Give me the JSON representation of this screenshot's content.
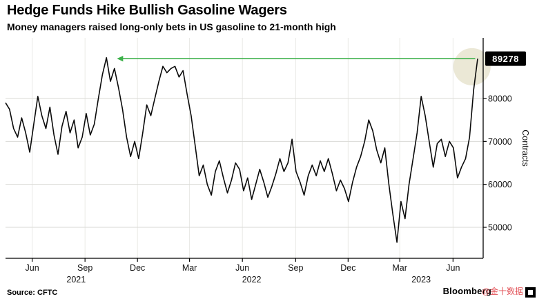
{
  "header": {
    "title": "Hedge Funds Hike Bullish Gasoline Wagers",
    "subtitle": "Money managers raised long-only bets in US gasoline to 21-month high"
  },
  "footer": {
    "source": "Source: CFTC",
    "brand": "Bloomberg",
    "watermark": "@金十数据"
  },
  "chart_data": {
    "type": "line",
    "y_title": "Contracts",
    "badge_label": "89278",
    "line_color": "#0a0a0a",
    "y_ticks": [
      50000,
      60000,
      70000,
      80000
    ],
    "ylim": [
      42800,
      94000
    ],
    "x_ticks": [
      {
        "label": "Jun",
        "week": 6.6
      },
      {
        "label": "Sep",
        "week": 19.7
      },
      {
        "label": "Dec",
        "week": 32.7
      },
      {
        "label": "Mar",
        "week": 45.6
      },
      {
        "label": "Jun",
        "week": 58.7
      },
      {
        "label": "Sep",
        "week": 71.9
      },
      {
        "label": "Dec",
        "week": 84.9
      },
      {
        "label": "Mar",
        "week": 97.7
      },
      {
        "label": "Jun",
        "week": 110.9
      }
    ],
    "year_labels": [
      {
        "label": "2021",
        "week": 17.5
      },
      {
        "label": "2022",
        "week": 61.0
      },
      {
        "label": "2023",
        "week": 103.0
      }
    ],
    "arrow": {
      "value": 89278,
      "from_week": 116.4,
      "to_week": 27.6,
      "color": "#3cb14a"
    },
    "highlight": {
      "week": 115.6,
      "value": 87400,
      "radius": 27,
      "fill": "#d8d2ae",
      "opacity": 0.5
    },
    "values": [
      79000,
      77500,
      73000,
      71000,
      75500,
      72000,
      67500,
      74000,
      80500,
      76000,
      73000,
      78000,
      71500,
      67000,
      73500,
      77000,
      72000,
      75000,
      68500,
      71000,
      76500,
      71500,
      74000,
      80000,
      85500,
      89500,
      84000,
      87000,
      82500,
      77500,
      71000,
      66500,
      70000,
      66000,
      72000,
      78500,
      76000,
      80000,
      84000,
      87500,
      86000,
      87000,
      87500,
      85000,
      86500,
      81000,
      76000,
      69000,
      62000,
      64500,
      60000,
      57500,
      63000,
      65500,
      61500,
      58000,
      61000,
      65000,
      63500,
      58500,
      61500,
      56500,
      60000,
      63500,
      60500,
      57000,
      59500,
      62500,
      66000,
      63000,
      65000,
      70500,
      63000,
      60500,
      57500,
      62000,
      64500,
      62000,
      65500,
      63000,
      66000,
      62500,
      58500,
      61000,
      59000,
      56000,
      60500,
      64000,
      66500,
      70000,
      75000,
      72500,
      68000,
      65000,
      68500,
      60000,
      53000,
      46500,
      56000,
      52000,
      60000,
      66000,
      72000,
      80500,
      76000,
      70000,
      64000,
      69500,
      70500,
      66500,
      70000,
      68500,
      61500,
      64000,
      66000,
      71000,
      82000,
      89278
    ]
  }
}
